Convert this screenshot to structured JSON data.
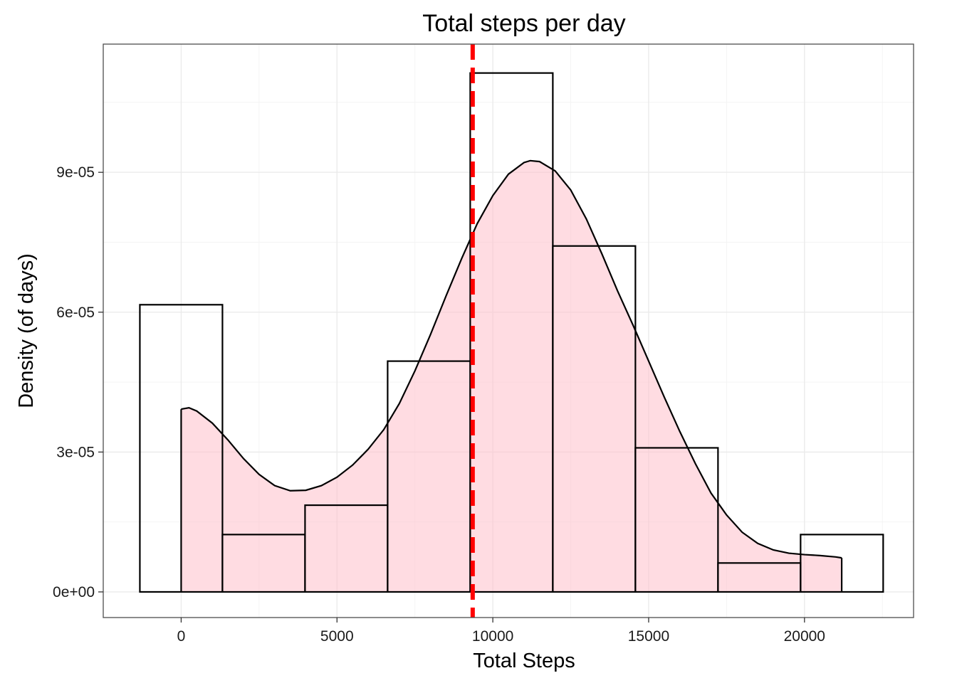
{
  "chart_data": {
    "type": "histogram",
    "title": "Total steps per day",
    "xlabel": "Total Steps",
    "ylabel": "Density (of days)",
    "xlim": [
      -2500,
      23500
    ],
    "ylim": [
      -5.5e-06,
      0.0001175
    ],
    "x_ticks": [
      0,
      5000,
      10000,
      15000,
      20000
    ],
    "x_tick_labels": [
      "0",
      "5000",
      "10000",
      "15000",
      "20000"
    ],
    "x_minor_ticks": [
      2500,
      7500,
      12500,
      17500,
      22500
    ],
    "y_ticks": [
      0,
      3e-05,
      6e-05,
      9e-05
    ],
    "y_tick_labels": [
      "0e+00",
      "3e-05",
      "6e-05",
      "9e-05"
    ],
    "y_minor_ticks": [
      1.5e-05,
      4.5e-05,
      7.5e-05,
      0.000105
    ],
    "grid": true,
    "histogram": {
      "bin_edges": [
        -1325,
        1325,
        3975,
        6625,
        9275,
        11925,
        14575,
        17225,
        19875,
        22525
      ],
      "density": [
        6.16e-05,
        1.23e-05,
        1.86e-05,
        4.95e-05,
        0.0001113,
        7.42e-05,
        3.09e-05,
        6.2e-06,
        1.23e-05
      ],
      "fill": "none",
      "stroke": "#000000"
    },
    "density_curve": {
      "x": [
        0,
        250,
        500,
        1000,
        1500,
        2000,
        2500,
        3000,
        3500,
        4000,
        4500,
        5000,
        5500,
        6000,
        6500,
        7000,
        7500,
        8000,
        8500,
        9000,
        9500,
        10000,
        10500,
        11000,
        11200,
        11500,
        12000,
        12500,
        13000,
        13500,
        14000,
        14500,
        15000,
        15500,
        16000,
        16500,
        17000,
        17500,
        18000,
        18500,
        19000,
        19500,
        20000,
        20500,
        21000,
        21194
      ],
      "y": [
        3.92e-05,
        3.95e-05,
        3.88e-05,
        3.62e-05,
        3.26e-05,
        2.86e-05,
        2.52e-05,
        2.28e-05,
        2.17e-05,
        2.18e-05,
        2.28e-05,
        2.46e-05,
        2.72e-05,
        3.06e-05,
        3.48e-05,
        4.04e-05,
        4.74e-05,
        5.52e-05,
        6.35e-05,
        7.15e-05,
        7.9e-05,
        8.5e-05,
        8.96e-05,
        9.21e-05,
        9.25e-05,
        9.23e-05,
        9.03e-05,
        8.62e-05,
        8e-05,
        7.25e-05,
        6.46e-05,
        5.72e-05,
        4.95e-05,
        4.18e-05,
        3.44e-05,
        2.75e-05,
        2.12e-05,
        1.65e-05,
        1.28e-05,
        1.04e-05,
        9e-06,
        8.3e-06,
        8e-06,
        7.8e-06,
        7.5e-06,
        7.3e-06
      ],
      "fill": "#ffc0cb",
      "fill_opacity": 0.55,
      "stroke": "#000000"
    },
    "mean_line": {
      "x": 9354,
      "color": "#ff0000",
      "style": "dashed"
    },
    "panel_border": "#4d4d4d",
    "grid_major_color": "#ebebeb",
    "grid_minor_color": "#f4f4f4"
  }
}
